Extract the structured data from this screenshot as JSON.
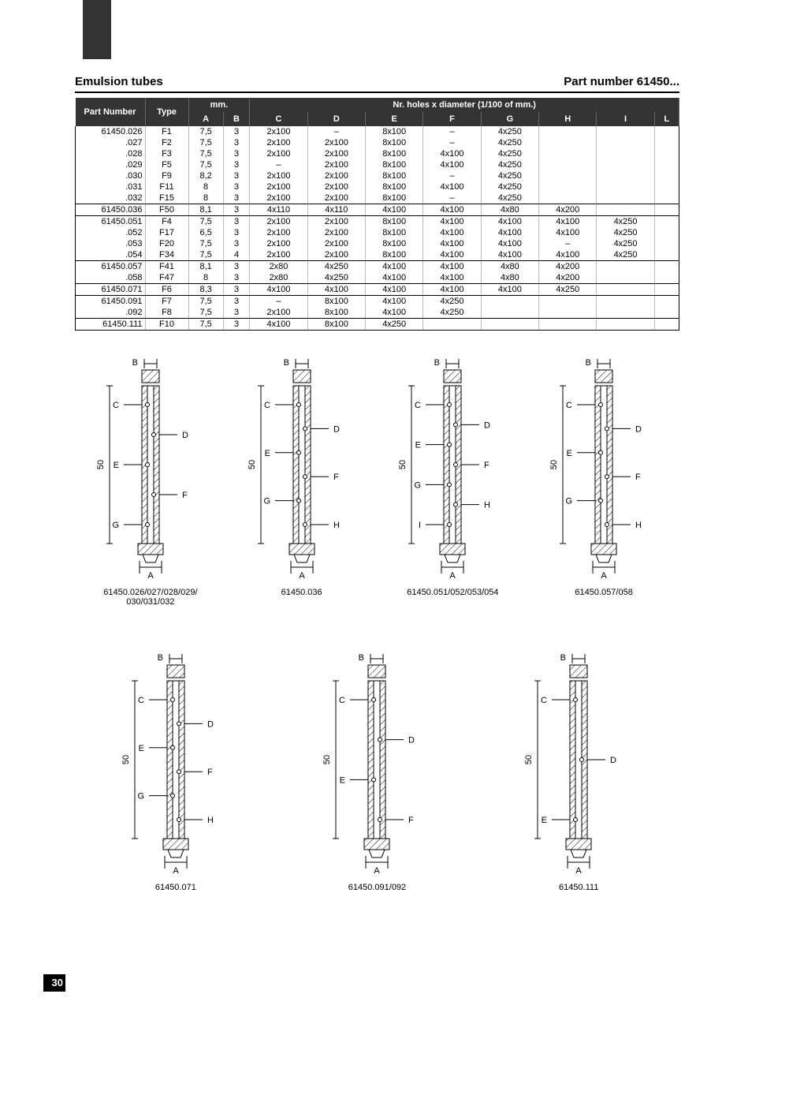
{
  "page_number": "30",
  "header": {
    "left": "Emulsion tubes",
    "right": "Part number 61450..."
  },
  "table": {
    "header_top": {
      "part": "Part Number",
      "type": "Type",
      "mm": "mm.",
      "holes": "Nr. holes x diameter (1/100 of mm.)"
    },
    "header_cols": [
      "A",
      "B",
      "C",
      "D",
      "E",
      "F",
      "G",
      "H",
      "I",
      "L"
    ],
    "groups": [
      {
        "rows": [
          {
            "part": "61450.026",
            "type": "F1",
            "a": "7,5",
            "b": "3",
            "c": "2x100",
            "d": "–",
            "e": "8x100",
            "f": "–",
            "g": "4x250",
            "h": "",
            "i": "",
            "l": ""
          },
          {
            "part": ".027",
            "type": "F2",
            "a": "7,5",
            "b": "3",
            "c": "2x100",
            "d": "2x100",
            "e": "8x100",
            "f": "–",
            "g": "4x250",
            "h": "",
            "i": "",
            "l": ""
          },
          {
            "part": ".028",
            "type": "F3",
            "a": "7,5",
            "b": "3",
            "c": "2x100",
            "d": "2x100",
            "e": "8x100",
            "f": "4x100",
            "g": "4x250",
            "h": "",
            "i": "",
            "l": ""
          },
          {
            "part": ".029",
            "type": "F5",
            "a": "7,5",
            "b": "3",
            "c": "–",
            "d": "2x100",
            "e": "8x100",
            "f": "4x100",
            "g": "4x250",
            "h": "",
            "i": "",
            "l": ""
          },
          {
            "part": ".030",
            "type": "F9",
            "a": "8,2",
            "b": "3",
            "c": "2x100",
            "d": "2x100",
            "e": "8x100",
            "f": "–",
            "g": "4x250",
            "h": "",
            "i": "",
            "l": ""
          },
          {
            "part": ".031",
            "type": "F11",
            "a": "8",
            "b": "3",
            "c": "2x100",
            "d": "2x100",
            "e": "8x100",
            "f": "4x100",
            "g": "4x250",
            "h": "",
            "i": "",
            "l": ""
          },
          {
            "part": ".032",
            "type": "F15",
            "a": "8",
            "b": "3",
            "c": "2x100",
            "d": "2x100",
            "e": "8x100",
            "f": "–",
            "g": "4x250",
            "h": "",
            "i": "",
            "l": ""
          }
        ]
      },
      {
        "rows": [
          {
            "part": "61450.036",
            "type": "F50",
            "a": "8,1",
            "b": "3",
            "c": "4x110",
            "d": "4x110",
            "e": "4x100",
            "f": "4x100",
            "g": "4x80",
            "h": "4x200",
            "i": "",
            "l": ""
          }
        ]
      },
      {
        "rows": [
          {
            "part": "61450.051",
            "type": "F4",
            "a": "7,5",
            "b": "3",
            "c": "2x100",
            "d": "2x100",
            "e": "8x100",
            "f": "4x100",
            "g": "4x100",
            "h": "4x100",
            "i": "4x250",
            "l": ""
          },
          {
            "part": ".052",
            "type": "F17",
            "a": "6,5",
            "b": "3",
            "c": "2x100",
            "d": "2x100",
            "e": "8x100",
            "f": "4x100",
            "g": "4x100",
            "h": "4x100",
            "i": "4x250",
            "l": ""
          },
          {
            "part": ".053",
            "type": "F20",
            "a": "7,5",
            "b": "3",
            "c": "2x100",
            "d": "2x100",
            "e": "8x100",
            "f": "4x100",
            "g": "4x100",
            "h": "–",
            "i": "4x250",
            "l": ""
          },
          {
            "part": ".054",
            "type": "F34",
            "a": "7,5",
            "b": "4",
            "c": "2x100",
            "d": "2x100",
            "e": "8x100",
            "f": "4x100",
            "g": "4x100",
            "h": "4x100",
            "i": "4x250",
            "l": ""
          }
        ]
      },
      {
        "rows": [
          {
            "part": "61450.057",
            "type": "F41",
            "a": "8,1",
            "b": "3",
            "c": "2x80",
            "d": "4x250",
            "e": "4x100",
            "f": "4x100",
            "g": "4x80",
            "h": "4x200",
            "i": "",
            "l": ""
          },
          {
            "part": ".058",
            "type": "F47",
            "a": "8",
            "b": "3",
            "c": "2x80",
            "d": "4x250",
            "e": "4x100",
            "f": "4x100",
            "g": "4x80",
            "h": "4x200",
            "i": "",
            "l": ""
          }
        ]
      },
      {
        "rows": [
          {
            "part": "61450.071",
            "type": "F6",
            "a": "8,3",
            "b": "3",
            "c": "4x100",
            "d": "4x100",
            "e": "4x100",
            "f": "4x100",
            "g": "4x100",
            "h": "4x250",
            "i": "",
            "l": ""
          }
        ]
      },
      {
        "rows": [
          {
            "part": "61450.091",
            "type": "F7",
            "a": "7,5",
            "b": "3",
            "c": "–",
            "d": "8x100",
            "e": "4x100",
            "f": "4x250",
            "g": "",
            "h": "",
            "i": "",
            "l": ""
          },
          {
            "part": ".092",
            "type": "F8",
            "a": "7,5",
            "b": "3",
            "c": "2x100",
            "d": "8x100",
            "e": "4x100",
            "f": "4x250",
            "g": "",
            "h": "",
            "i": "",
            "l": ""
          }
        ]
      },
      {
        "rows": [
          {
            "part": "61450.111",
            "type": "F10",
            "a": "7,5",
            "b": "3",
            "c": "4x100",
            "d": "8x100",
            "e": "4x250",
            "f": "",
            "g": "",
            "h": "",
            "i": "",
            "l": ""
          }
        ]
      }
    ]
  },
  "diagrams": {
    "row1": [
      {
        "caption_line1": "61450.026/027/028/029/",
        "caption_line2": "030/031/032",
        "labels": [
          "A",
          "B",
          "C",
          "D",
          "E",
          "F",
          "G"
        ],
        "height": "50"
      },
      {
        "caption": "61450.036",
        "labels": [
          "A",
          "B",
          "C",
          "D",
          "E",
          "F",
          "G",
          "H"
        ],
        "height": "50"
      },
      {
        "caption": "61450.051/052/053/054",
        "labels": [
          "A",
          "B",
          "C",
          "D",
          "E",
          "F",
          "G",
          "H",
          "I"
        ],
        "height": "50"
      },
      {
        "caption": "61450.057/058",
        "labels": [
          "A",
          "B",
          "C",
          "D",
          "E",
          "F",
          "G",
          "H"
        ],
        "height": "50"
      }
    ],
    "row2": [
      {
        "caption": "61450.071",
        "labels": [
          "A",
          "B",
          "C",
          "D",
          "E",
          "F",
          "G",
          "H"
        ],
        "height": "50"
      },
      {
        "caption": "61450.091/092",
        "labels": [
          "A",
          "B",
          "C",
          "D",
          "E",
          "F"
        ],
        "height": "50"
      },
      {
        "caption": "61450.111",
        "labels": [
          "A",
          "B",
          "C",
          "D",
          "E"
        ],
        "height": "50"
      }
    ]
  },
  "styling": {
    "colors": {
      "header_bg": "#333333",
      "header_fg": "#ffffff",
      "rule": "#000000",
      "cell_border": "#bbbbbb",
      "hatch": "#000000"
    },
    "fonts": {
      "body_size_pt": 11,
      "title_size_pt": 15,
      "caption_size_pt": 11
    }
  }
}
